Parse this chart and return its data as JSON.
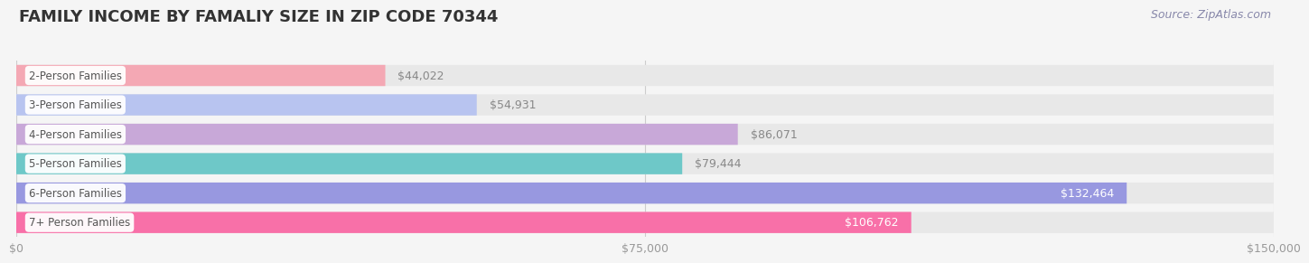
{
  "title": "FAMILY INCOME BY FAMALIY SIZE IN ZIP CODE 70344",
  "source": "Source: ZipAtlas.com",
  "categories": [
    "2-Person Families",
    "3-Person Families",
    "4-Person Families",
    "5-Person Families",
    "6-Person Families",
    "7+ Person Families"
  ],
  "values": [
    44022,
    54931,
    86071,
    79444,
    132464,
    106762
  ],
  "bar_colors": [
    "#f4a8b4",
    "#b8c4f0",
    "#c8a8d8",
    "#6ec8c8",
    "#9898e0",
    "#f870a8"
  ],
  "xlim": [
    0,
    150000
  ],
  "xticks": [
    0,
    75000,
    150000
  ],
  "xtick_labels": [
    "$0",
    "$75,000",
    "$150,000"
  ],
  "background_color": "#f5f5f5",
  "bar_bg_color": "#e8e8e8",
  "title_fontsize": 13,
  "source_fontsize": 9,
  "label_fontsize": 9,
  "category_fontsize": 8.5
}
